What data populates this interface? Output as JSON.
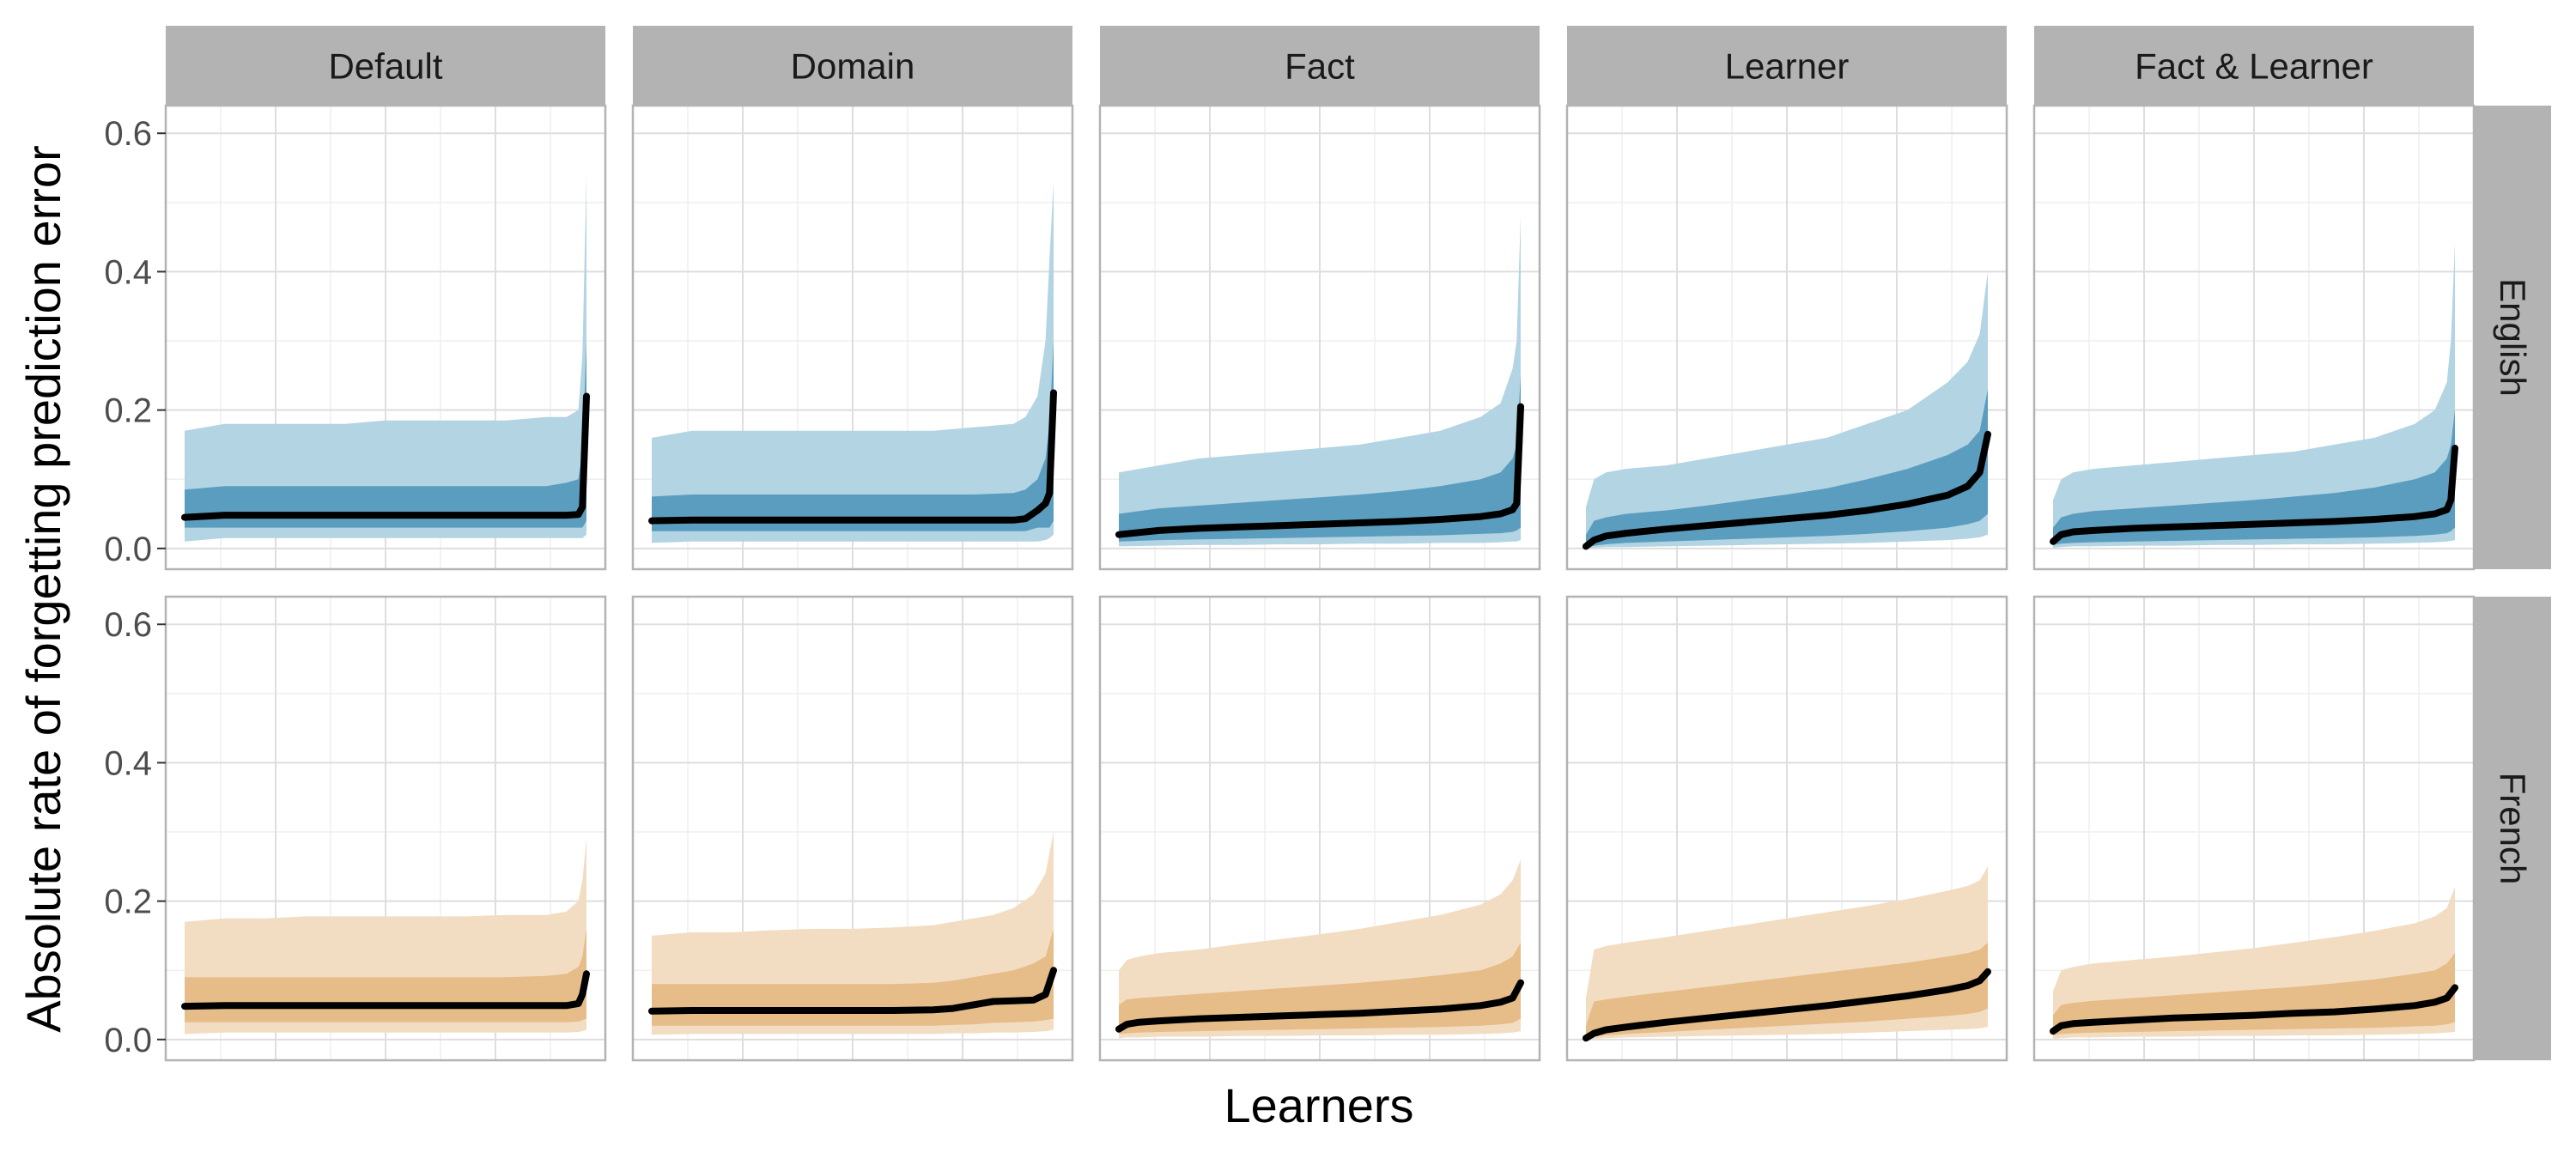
{
  "chart_data": {
    "type": "area",
    "xlabel": "Learners",
    "ylabel": "Absolute rate of forgetting prediction error",
    "columns": [
      "Default",
      "Domain",
      "Fact",
      "Learner",
      "Fact & Learner"
    ],
    "rows": [
      "English",
      "French"
    ],
    "ylim": [
      -0.03,
      0.64
    ],
    "yticks": [
      0.0,
      0.2,
      0.4,
      0.6
    ],
    "ytick_labels": [
      "0.0",
      "0.2",
      "0.4",
      "0.6"
    ],
    "grid": true,
    "colors": {
      "English": {
        "outer": "#b3d4e3",
        "inner": "#5b9dbf"
      },
      "French": {
        "outer": "#f3ddc2",
        "inner": "#e6bc88"
      },
      "median_line": "#000000",
      "strip_fill": "#b3b3b3",
      "panel_border": "#b3b3b3",
      "grid_major": "#dedede",
      "grid_minor": "#efefef"
    },
    "panels": [
      {
        "row": "English",
        "column": "Default",
        "x": [
          0,
          0.1,
          0.2,
          0.3,
          0.4,
          0.5,
          0.6,
          0.7,
          0.8,
          0.9,
          0.95,
          0.98,
          0.99,
          1.0
        ],
        "median": [
          0.045,
          0.048,
          0.048,
          0.048,
          0.048,
          0.048,
          0.048,
          0.048,
          0.048,
          0.048,
          0.048,
          0.049,
          0.06,
          0.22
        ],
        "inner_low": [
          0.03,
          0.03,
          0.03,
          0.03,
          0.03,
          0.03,
          0.03,
          0.03,
          0.03,
          0.03,
          0.03,
          0.03,
          0.03,
          0.04
        ],
        "inner_high": [
          0.085,
          0.09,
          0.09,
          0.09,
          0.09,
          0.09,
          0.09,
          0.09,
          0.09,
          0.09,
          0.095,
          0.1,
          0.14,
          0.3
        ],
        "outer_low": [
          0.01,
          0.015,
          0.015,
          0.015,
          0.015,
          0.015,
          0.015,
          0.015,
          0.015,
          0.015,
          0.015,
          0.015,
          0.015,
          0.02
        ],
        "outer_high": [
          0.17,
          0.18,
          0.18,
          0.18,
          0.18,
          0.185,
          0.185,
          0.185,
          0.185,
          0.19,
          0.19,
          0.2,
          0.28,
          0.54
        ]
      },
      {
        "row": "English",
        "column": "Domain",
        "x": [
          0,
          0.1,
          0.2,
          0.3,
          0.4,
          0.5,
          0.6,
          0.7,
          0.8,
          0.9,
          0.93,
          0.96,
          0.98,
          0.99,
          1.0
        ],
        "median": [
          0.04,
          0.041,
          0.041,
          0.041,
          0.041,
          0.041,
          0.041,
          0.041,
          0.041,
          0.041,
          0.043,
          0.055,
          0.065,
          0.08,
          0.225
        ],
        "inner_low": [
          0.025,
          0.025,
          0.025,
          0.025,
          0.025,
          0.025,
          0.025,
          0.025,
          0.025,
          0.025,
          0.025,
          0.03,
          0.03,
          0.03,
          0.04
        ],
        "inner_high": [
          0.075,
          0.078,
          0.078,
          0.078,
          0.078,
          0.078,
          0.078,
          0.078,
          0.078,
          0.08,
          0.085,
          0.1,
          0.13,
          0.18,
          0.3
        ],
        "outer_low": [
          0.008,
          0.01,
          0.01,
          0.01,
          0.01,
          0.01,
          0.01,
          0.01,
          0.01,
          0.01,
          0.01,
          0.01,
          0.012,
          0.015,
          0.02
        ],
        "outer_high": [
          0.16,
          0.17,
          0.17,
          0.17,
          0.17,
          0.17,
          0.17,
          0.17,
          0.175,
          0.18,
          0.19,
          0.22,
          0.3,
          0.42,
          0.53
        ]
      },
      {
        "row": "English",
        "column": "Fact",
        "x": [
          0,
          0.1,
          0.2,
          0.3,
          0.4,
          0.5,
          0.6,
          0.7,
          0.8,
          0.9,
          0.95,
          0.98,
          0.99,
          1.0
        ],
        "median": [
          0.02,
          0.026,
          0.029,
          0.031,
          0.033,
          0.035,
          0.037,
          0.039,
          0.042,
          0.046,
          0.05,
          0.056,
          0.065,
          0.205
        ],
        "inner_low": [
          0.01,
          0.012,
          0.013,
          0.014,
          0.015,
          0.016,
          0.017,
          0.018,
          0.019,
          0.021,
          0.022,
          0.024,
          0.026,
          0.03
        ],
        "inner_high": [
          0.05,
          0.058,
          0.062,
          0.066,
          0.07,
          0.074,
          0.078,
          0.083,
          0.09,
          0.1,
          0.11,
          0.13,
          0.15,
          0.25
        ],
        "outer_low": [
          0.003,
          0.004,
          0.005,
          0.005,
          0.006,
          0.006,
          0.007,
          0.007,
          0.008,
          0.008,
          0.009,
          0.01,
          0.01,
          0.012
        ],
        "outer_high": [
          0.11,
          0.12,
          0.13,
          0.135,
          0.14,
          0.145,
          0.15,
          0.16,
          0.17,
          0.19,
          0.21,
          0.26,
          0.3,
          0.48
        ]
      },
      {
        "row": "English",
        "column": "Learner",
        "x": [
          0,
          0.02,
          0.05,
          0.1,
          0.2,
          0.3,
          0.4,
          0.5,
          0.6,
          0.7,
          0.8,
          0.9,
          0.95,
          0.98,
          1.0
        ],
        "median": [
          0.003,
          0.012,
          0.018,
          0.022,
          0.028,
          0.033,
          0.038,
          0.043,
          0.048,
          0.055,
          0.064,
          0.077,
          0.09,
          0.11,
          0.165
        ],
        "inner_low": [
          0.002,
          0.004,
          0.006,
          0.008,
          0.01,
          0.012,
          0.014,
          0.016,
          0.018,
          0.021,
          0.025,
          0.03,
          0.035,
          0.04,
          0.05
        ],
        "inner_high": [
          0.02,
          0.04,
          0.045,
          0.05,
          0.055,
          0.062,
          0.07,
          0.078,
          0.087,
          0.1,
          0.115,
          0.135,
          0.15,
          0.17,
          0.23
        ],
        "outer_low": [
          0.0,
          0.001,
          0.002,
          0.002,
          0.003,
          0.004,
          0.005,
          0.006,
          0.007,
          0.008,
          0.01,
          0.012,
          0.014,
          0.016,
          0.02
        ],
        "outer_high": [
          0.06,
          0.1,
          0.11,
          0.115,
          0.12,
          0.13,
          0.14,
          0.15,
          0.16,
          0.18,
          0.2,
          0.24,
          0.27,
          0.31,
          0.4
        ]
      },
      {
        "row": "English",
        "column": "Fact & Learner",
        "x": [
          0,
          0.02,
          0.05,
          0.1,
          0.2,
          0.3,
          0.4,
          0.5,
          0.6,
          0.7,
          0.8,
          0.9,
          0.95,
          0.98,
          0.99,
          1.0
        ],
        "median": [
          0.01,
          0.02,
          0.024,
          0.026,
          0.029,
          0.031,
          0.033,
          0.035,
          0.037,
          0.039,
          0.042,
          0.046,
          0.05,
          0.056,
          0.07,
          0.145
        ],
        "inner_low": [
          0.005,
          0.007,
          0.008,
          0.009,
          0.01,
          0.011,
          0.012,
          0.013,
          0.014,
          0.015,
          0.016,
          0.018,
          0.02,
          0.022,
          0.025,
          0.03
        ],
        "inner_high": [
          0.03,
          0.045,
          0.05,
          0.054,
          0.058,
          0.062,
          0.066,
          0.07,
          0.075,
          0.08,
          0.088,
          0.1,
          0.11,
          0.13,
          0.15,
          0.2
        ],
        "outer_low": [
          0.001,
          0.002,
          0.003,
          0.003,
          0.004,
          0.004,
          0.005,
          0.005,
          0.006,
          0.006,
          0.007,
          0.008,
          0.009,
          0.01,
          0.011,
          0.012
        ],
        "outer_high": [
          0.07,
          0.1,
          0.11,
          0.115,
          0.12,
          0.125,
          0.13,
          0.135,
          0.14,
          0.15,
          0.16,
          0.18,
          0.2,
          0.24,
          0.3,
          0.44
        ]
      },
      {
        "row": "French",
        "column": "Default",
        "x": [
          0,
          0.1,
          0.2,
          0.3,
          0.4,
          0.5,
          0.6,
          0.7,
          0.8,
          0.9,
          0.95,
          0.98,
          0.99,
          1.0
        ],
        "median": [
          0.048,
          0.049,
          0.049,
          0.049,
          0.049,
          0.049,
          0.049,
          0.049,
          0.049,
          0.049,
          0.049,
          0.052,
          0.065,
          0.095
        ],
        "inner_low": [
          0.025,
          0.025,
          0.025,
          0.025,
          0.025,
          0.025,
          0.025,
          0.025,
          0.025,
          0.025,
          0.025,
          0.026,
          0.028,
          0.03
        ],
        "inner_high": [
          0.09,
          0.09,
          0.09,
          0.09,
          0.09,
          0.09,
          0.09,
          0.09,
          0.09,
          0.092,
          0.095,
          0.105,
          0.12,
          0.16
        ],
        "outer_low": [
          0.008,
          0.01,
          0.01,
          0.01,
          0.01,
          0.01,
          0.01,
          0.01,
          0.01,
          0.01,
          0.01,
          0.011,
          0.012,
          0.014
        ],
        "outer_high": [
          0.17,
          0.175,
          0.175,
          0.178,
          0.178,
          0.178,
          0.178,
          0.178,
          0.18,
          0.18,
          0.185,
          0.2,
          0.23,
          0.29
        ]
      },
      {
        "row": "French",
        "column": "Domain",
        "x": [
          0,
          0.1,
          0.2,
          0.3,
          0.4,
          0.5,
          0.6,
          0.7,
          0.75,
          0.8,
          0.85,
          0.9,
          0.95,
          0.98,
          1.0
        ],
        "median": [
          0.041,
          0.042,
          0.042,
          0.042,
          0.042,
          0.042,
          0.042,
          0.043,
          0.045,
          0.05,
          0.055,
          0.056,
          0.057,
          0.065,
          0.1
        ],
        "inner_low": [
          0.02,
          0.02,
          0.02,
          0.02,
          0.02,
          0.02,
          0.02,
          0.02,
          0.021,
          0.022,
          0.024,
          0.025,
          0.026,
          0.028,
          0.03
        ],
        "inner_high": [
          0.08,
          0.08,
          0.08,
          0.08,
          0.08,
          0.08,
          0.08,
          0.082,
          0.085,
          0.09,
          0.095,
          0.1,
          0.11,
          0.12,
          0.16
        ],
        "outer_low": [
          0.007,
          0.008,
          0.008,
          0.008,
          0.008,
          0.008,
          0.008,
          0.008,
          0.009,
          0.009,
          0.01,
          0.01,
          0.011,
          0.012,
          0.014
        ],
        "outer_high": [
          0.15,
          0.155,
          0.155,
          0.158,
          0.16,
          0.16,
          0.162,
          0.165,
          0.17,
          0.175,
          0.18,
          0.19,
          0.21,
          0.24,
          0.3
        ]
      },
      {
        "row": "French",
        "column": "Fact",
        "x": [
          0,
          0.02,
          0.05,
          0.1,
          0.2,
          0.3,
          0.4,
          0.5,
          0.6,
          0.7,
          0.8,
          0.9,
          0.95,
          0.98,
          1.0
        ],
        "median": [
          0.015,
          0.022,
          0.025,
          0.027,
          0.03,
          0.032,
          0.034,
          0.036,
          0.038,
          0.041,
          0.044,
          0.049,
          0.054,
          0.06,
          0.082
        ],
        "inner_low": [
          0.008,
          0.009,
          0.01,
          0.011,
          0.012,
          0.013,
          0.014,
          0.015,
          0.016,
          0.017,
          0.018,
          0.02,
          0.022,
          0.024,
          0.03
        ],
        "inner_high": [
          0.05,
          0.058,
          0.06,
          0.062,
          0.066,
          0.07,
          0.074,
          0.078,
          0.082,
          0.087,
          0.093,
          0.1,
          0.11,
          0.12,
          0.14
        ],
        "outer_low": [
          0.002,
          0.003,
          0.003,
          0.004,
          0.004,
          0.005,
          0.005,
          0.006,
          0.006,
          0.007,
          0.007,
          0.008,
          0.009,
          0.01,
          0.012
        ],
        "outer_high": [
          0.1,
          0.115,
          0.12,
          0.125,
          0.13,
          0.138,
          0.145,
          0.152,
          0.16,
          0.17,
          0.18,
          0.195,
          0.21,
          0.23,
          0.26
        ]
      },
      {
        "row": "French",
        "column": "Learner",
        "x": [
          0,
          0.02,
          0.05,
          0.1,
          0.2,
          0.3,
          0.4,
          0.5,
          0.6,
          0.7,
          0.8,
          0.9,
          0.95,
          0.98,
          1.0
        ],
        "median": [
          0.002,
          0.009,
          0.014,
          0.018,
          0.025,
          0.031,
          0.037,
          0.043,
          0.049,
          0.056,
          0.063,
          0.072,
          0.078,
          0.085,
          0.098
        ],
        "inner_low": [
          0.002,
          0.004,
          0.006,
          0.008,
          0.011,
          0.014,
          0.017,
          0.02,
          0.023,
          0.026,
          0.03,
          0.034,
          0.037,
          0.04,
          0.045
        ],
        "inner_high": [
          0.02,
          0.055,
          0.058,
          0.062,
          0.069,
          0.076,
          0.083,
          0.09,
          0.097,
          0.104,
          0.111,
          0.12,
          0.125,
          0.13,
          0.14
        ],
        "outer_low": [
          0.0,
          0.001,
          0.002,
          0.003,
          0.004,
          0.005,
          0.006,
          0.007,
          0.008,
          0.01,
          0.012,
          0.014,
          0.015,
          0.016,
          0.018
        ],
        "outer_high": [
          0.06,
          0.13,
          0.135,
          0.14,
          0.148,
          0.157,
          0.166,
          0.175,
          0.184,
          0.193,
          0.203,
          0.215,
          0.222,
          0.23,
          0.25
        ]
      },
      {
        "row": "French",
        "column": "Fact & Learner",
        "x": [
          0,
          0.02,
          0.05,
          0.1,
          0.2,
          0.3,
          0.4,
          0.5,
          0.6,
          0.7,
          0.8,
          0.9,
          0.95,
          0.98,
          1.0
        ],
        "median": [
          0.012,
          0.02,
          0.023,
          0.025,
          0.028,
          0.031,
          0.033,
          0.035,
          0.038,
          0.04,
          0.044,
          0.049,
          0.054,
          0.06,
          0.075
        ],
        "inner_low": [
          0.006,
          0.008,
          0.009,
          0.01,
          0.011,
          0.012,
          0.013,
          0.014,
          0.015,
          0.016,
          0.017,
          0.019,
          0.02,
          0.022,
          0.025
        ],
        "inner_high": [
          0.035,
          0.05,
          0.053,
          0.056,
          0.06,
          0.064,
          0.068,
          0.072,
          0.076,
          0.081,
          0.087,
          0.095,
          0.1,
          0.11,
          0.125
        ],
        "outer_low": [
          0.001,
          0.002,
          0.003,
          0.003,
          0.004,
          0.004,
          0.005,
          0.005,
          0.006,
          0.006,
          0.007,
          0.008,
          0.009,
          0.01,
          0.011
        ],
        "outer_high": [
          0.07,
          0.1,
          0.105,
          0.11,
          0.115,
          0.12,
          0.126,
          0.132,
          0.14,
          0.148,
          0.157,
          0.168,
          0.178,
          0.19,
          0.22
        ]
      }
    ]
  }
}
